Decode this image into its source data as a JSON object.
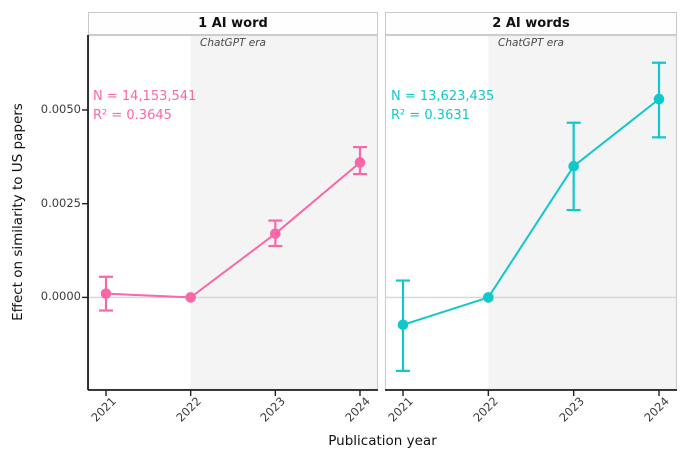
{
  "chart_data": {
    "type": "line",
    "title": "",
    "xlabel": "Publication year",
    "ylabel": "Effect on similarity to US papers",
    "x": [
      2021,
      2022,
      2023,
      2024
    ],
    "x_tick_labels": [
      "2021",
      "2022",
      "2023",
      "2024"
    ],
    "y_ticks": [
      0.0,
      0.0025,
      0.005
    ],
    "y_tick_labels": [
      "0.0000",
      "0.0025",
      "0.0050"
    ],
    "ylim": [
      -0.00247,
      0.007
    ],
    "grid": false,
    "zero_line": true,
    "zero_line_color": "#d6d6d6",
    "panel_border_color": "#cfcfcf",
    "axis_color": "#1f1f1f",
    "shaded_region": {
      "label": "ChatGPT era",
      "x_start": 2022,
      "color": "#f4f4f4"
    },
    "panels": [
      {
        "title": "1 AI word",
        "color": "#f768a9",
        "era_label": "ChatGPT era",
        "annotation": {
          "n_label": "N = 14,153,541",
          "r2_label": "R² = 0.3645"
        },
        "series": {
          "name": "1 AI word",
          "values": [
            0.0001,
            0.0,
            0.0017,
            0.0036
          ],
          "ci_low": [
            -0.00035,
            null,
            0.00137,
            0.00329
          ],
          "ci_high": [
            0.00055,
            null,
            0.00205,
            0.00401
          ]
        }
      },
      {
        "title": "2 AI words",
        "color": "#12c7cc",
        "era_label": "ChatGPT era",
        "annotation": {
          "n_label": "N = 13,623,435",
          "r2_label": "R² = 0.3631"
        },
        "series": {
          "name": "2 AI words",
          "values": [
            -0.00073,
            0.0,
            0.0035,
            0.00529
          ],
          "ci_low": [
            -0.00196,
            null,
            0.00233,
            0.00427
          ],
          "ci_high": [
            0.00045,
            null,
            0.00466,
            0.00626
          ]
        }
      }
    ]
  }
}
